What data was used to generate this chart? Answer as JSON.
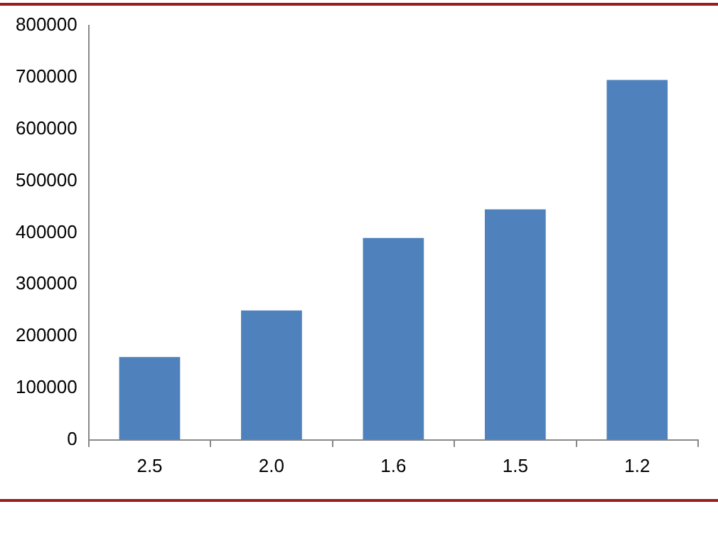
{
  "chart_data": {
    "type": "bar",
    "categories": [
      "2.5",
      "2.0",
      "1.6",
      "1.5",
      "1.2"
    ],
    "values": [
      160000,
      250000,
      390000,
      445000,
      695000
    ],
    "color": "#4f81bd",
    "ylim": [
      0,
      800000
    ],
    "yticks": [
      0,
      100000,
      200000,
      300000,
      400000,
      500000,
      600000,
      700000,
      800000
    ],
    "grid": false,
    "legend": false
  }
}
